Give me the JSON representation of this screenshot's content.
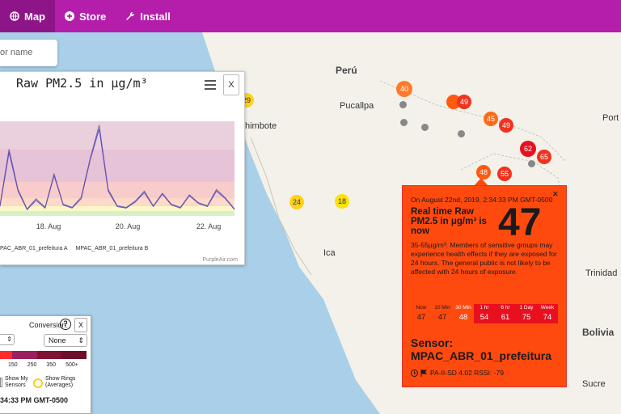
{
  "nav": {
    "items": [
      {
        "label": "Map"
      },
      {
        "label": "Store"
      },
      {
        "label": "Install"
      }
    ]
  },
  "search": {
    "placeholder": "or name"
  },
  "places": {
    "peru": "Perú",
    "pucallpa": "Pucallpa",
    "chimbote": "himbote",
    "ica": "Ica",
    "port": "Port",
    "trinidad": "Trinidad",
    "bolivia": "Bolivia",
    "sucre": "Sucre"
  },
  "markers": [
    "40",
    "49",
    "45",
    "49",
    "62",
    "65",
    "55",
    "48",
    "29",
    "24",
    "18"
  ],
  "chart": {
    "title": "Raw PM2.5 in μg/m³",
    "close_label": "X",
    "x_ticks": [
      "18. Aug",
      "20. Aug",
      "22. Aug"
    ],
    "legend_a": "PAC_ABR_01_prefeitura A",
    "legend_b": "MPAC_ABR_01_prefeitura B",
    "credit": "PurpleAir.com",
    "colors": {
      "series_a": "#3b43b8",
      "series_b": "#6a4aa8"
    }
  },
  "chart_data": {
    "type": "line",
    "title": "Raw PM2.5 in μg/m³",
    "x_ticks": [
      "18. Aug",
      "20. Aug",
      "22. Aug"
    ],
    "series": [
      {
        "name": "PAC_ABR_01_prefeitura A",
        "values": [
          10,
          80,
          30,
          6,
          18,
          8,
          50,
          12,
          8,
          20,
          70,
          110,
          30,
          10,
          8,
          16,
          28,
          10,
          26,
          12,
          8,
          24,
          14,
          10,
          30,
          20,
          6
        ]
      },
      {
        "name": "MPAC_ABR_01_prefeitura B",
        "values": [
          12,
          84,
          32,
          7,
          20,
          9,
          52,
          13,
          9,
          22,
          72,
          115,
          32,
          11,
          9,
          17,
          30,
          11,
          27,
          13,
          9,
          25,
          15,
          11,
          32,
          21,
          7
        ]
      }
    ]
  },
  "control": {
    "conversion_label": "Conversion:",
    "help": "?",
    "close_label": "X",
    "conversion_value": "None",
    "scale_ticks": [
      "150",
      "250",
      "350",
      "500+"
    ],
    "show_my_sensors": "Show My Sensors",
    "show_rings": "Show Rings (Averages)",
    "time": "34:33 PM GMT-0500"
  },
  "popup": {
    "date": "On August 22nd, 2019, 2:34:33 PM GMT-0500",
    "close": "×",
    "label": "Real time Raw PM2.5 in μg/m³ is now",
    "value": "47",
    "description": "35-55μg/m³: Members of sensitive groups may experience health effects if they are exposed for 24 hours. The general public is not likely to be affected with 24 hours of exposure.",
    "averages": [
      {
        "label": "Now",
        "value": "47"
      },
      {
        "label": "10 Min",
        "value": "47"
      },
      {
        "label": "30 Min",
        "value": "48"
      },
      {
        "label": "1 hr",
        "value": "54"
      },
      {
        "label": "6 hr",
        "value": "61"
      },
      {
        "label": "1 Day",
        "value": "75"
      },
      {
        "label": "Week",
        "value": "74"
      }
    ],
    "sensor_label": "Sensor:",
    "sensor_name": "MPAC_ABR_01_prefeitura",
    "meta": "PA-II-SD 4.02 RSSI: -79"
  }
}
